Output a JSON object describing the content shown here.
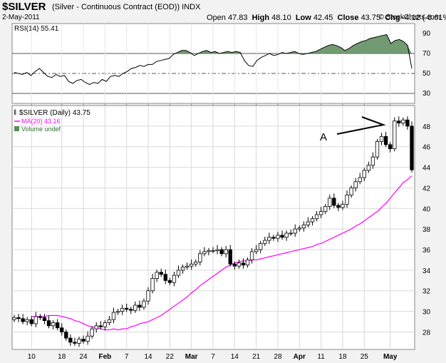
{
  "header": {
    "symbol": "$SILVER",
    "description": "(Silver - Continuous Contract (EOD))",
    "exchange": "INDX",
    "date": "2-May-2011",
    "watermark": "© StockCharts.com",
    "open_label": "Open",
    "open": "47.83",
    "high_label": "High",
    "high": "48.10",
    "low_label": "Low",
    "low": "42.45",
    "close_label": "Close",
    "close": "43.75",
    "chg_label": "Chg",
    "chg": "-4.12 (-8.61%)"
  },
  "colors": {
    "background": "#f2f2f2",
    "plot_bg": "#ffffff",
    "grid": "#d9d9d9",
    "rsi_fill": "#5b8a5b",
    "ma_line": "#ff00ff",
    "candle": "#000000"
  },
  "legend": {
    "price": "$SILVER (Daily) 43.75",
    "ma": "MA(20) 43.16",
    "volume": "Volume undef"
  },
  "annotation": {
    "label": "A"
  },
  "chart_data": [
    {
      "type": "line",
      "title": "RSI(14) 55.41",
      "series": [
        {
          "name": "RSI(14)",
          "values": [
            51,
            50,
            49,
            51,
            48,
            52,
            55,
            51,
            47,
            46,
            49,
            47,
            48,
            42,
            40,
            43,
            44,
            41,
            39,
            41,
            40,
            44,
            42,
            47,
            48,
            47,
            50,
            52,
            55,
            56,
            58,
            57,
            59,
            59,
            62,
            63,
            64,
            65,
            69,
            71,
            73,
            73,
            71,
            68,
            70,
            72,
            73,
            71,
            72,
            70,
            71,
            72,
            71,
            72,
            71,
            63,
            58,
            57,
            63,
            66,
            68,
            70,
            68,
            69,
            71,
            70,
            71,
            72,
            70,
            69,
            70,
            71,
            72,
            74,
            76,
            78,
            79,
            78,
            76,
            73,
            75,
            78,
            80,
            82,
            83,
            85,
            86,
            87,
            88,
            89,
            80,
            83,
            84,
            82,
            78,
            55
          ]
        }
      ],
      "ylim": [
        20,
        100
      ],
      "y_ticks": [
        90,
        70,
        50,
        30
      ],
      "reference_lines": [
        70,
        50,
        30
      ]
    },
    {
      "type": "candlestick",
      "title": "$SILVER (Daily) 43.75",
      "x_ticks": [
        "10",
        "18",
        "24",
        "Feb",
        "7",
        "14",
        "22",
        "Mar",
        "7",
        "14",
        "21",
        "28",
        "Apr",
        "11",
        "18",
        "25",
        "May"
      ],
      "y_ticks": [
        28,
        30,
        32,
        34,
        36,
        38,
        40,
        42,
        44,
        46,
        48
      ],
      "ylim": [
        26.3,
        50
      ],
      "series": [
        {
          "name": "$SILVER",
          "close": [
            29.4,
            29.3,
            29.0,
            29.2,
            28.8,
            29.5,
            29.4,
            29.1,
            28.6,
            28.9,
            28.4,
            28.0,
            27.4,
            27.0,
            26.9,
            27.3,
            27.1,
            27.6,
            28.3,
            28.6,
            28.5,
            28.9,
            29.2,
            29.9,
            30.0,
            30.3,
            30.2,
            30.1,
            30.6,
            30.4,
            31.0,
            32.0,
            33.2,
            33.8,
            33.6,
            33.0,
            32.8,
            33.5,
            34.0,
            34.3,
            34.4,
            34.6,
            34.8,
            35.6,
            35.8,
            35.9,
            35.9,
            36.0,
            35.6,
            36.0,
            34.6,
            34.4,
            34.7,
            34.5,
            35.0,
            35.8,
            36.0,
            36.6,
            36.9,
            37.2,
            37.1,
            37.4,
            37.2,
            37.6,
            37.6,
            38.0,
            38.1,
            38.4,
            38.7,
            39.0,
            39.4,
            39.7,
            40.2,
            41.0,
            40.3,
            40.1,
            40.4,
            41.3,
            42.0,
            42.6,
            43.0,
            43.7,
            44.2,
            45.0,
            46.5,
            47.0,
            46.2,
            45.8,
            48.5,
            48.3,
            48.6,
            48.0,
            43.75
          ]
        },
        {
          "name": "MA(20)",
          "values": [
            29.5,
            29.5,
            29.5,
            29.5,
            29.6,
            29.6,
            29.6,
            29.5,
            29.4,
            29.3,
            29.1,
            29.0,
            28.8,
            28.6,
            28.5,
            28.4,
            28.3,
            28.2,
            28.2,
            28.3,
            28.2,
            28.3,
            28.3,
            28.5,
            28.6,
            28.8,
            28.9,
            29.0,
            29.2,
            29.4,
            29.6,
            29.9,
            30.2,
            30.5,
            30.8,
            31.1,
            31.4,
            31.8,
            32.1,
            32.5,
            32.8,
            33.1,
            33.4,
            33.7,
            34.0,
            34.3,
            34.5,
            34.7,
            34.8,
            34.9,
            34.9,
            35.0,
            35.0,
            35.1,
            35.2,
            35.3,
            35.4,
            35.5,
            35.6,
            35.7,
            35.8,
            35.9,
            36.0,
            36.1,
            36.2,
            36.3,
            36.5,
            36.6,
            36.8,
            37.0,
            37.2,
            37.4,
            37.6,
            37.8,
            38.0,
            38.3,
            38.5,
            38.8,
            39.1,
            39.4,
            39.7,
            40.1,
            40.5,
            41.0,
            41.5,
            42.0,
            42.5,
            42.8,
            43.16
          ]
        }
      ]
    }
  ]
}
